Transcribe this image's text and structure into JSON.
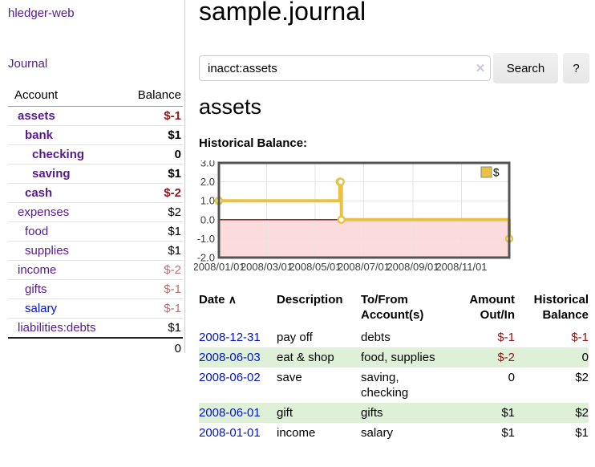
{
  "sidebar": {
    "app_title": "hledger-web",
    "journal_link": "Journal",
    "accounts": {
      "col_account": "Account",
      "col_balance": "Balance",
      "rows": [
        {
          "name": "assets",
          "depth": 0,
          "bold": true,
          "balance": "$-1",
          "neg": true,
          "soft": false,
          "blue": false
        },
        {
          "name": "bank",
          "depth": 1,
          "bold": true,
          "balance": "$1",
          "neg": false,
          "soft": false,
          "blue": false
        },
        {
          "name": "checking",
          "depth": 2,
          "bold": true,
          "balance": "0",
          "neg": false,
          "soft": false,
          "blue": false
        },
        {
          "name": "saving",
          "depth": 2,
          "bold": true,
          "balance": "$1",
          "neg": false,
          "soft": false,
          "blue": false
        },
        {
          "name": "cash",
          "depth": 1,
          "bold": true,
          "balance": "$-2",
          "neg": true,
          "soft": false,
          "blue": false
        },
        {
          "name": "expenses",
          "depth": 0,
          "bold": false,
          "balance": "$2",
          "neg": false,
          "soft": false,
          "blue": false
        },
        {
          "name": "food",
          "depth": 1,
          "bold": false,
          "balance": "$1",
          "neg": false,
          "soft": false,
          "blue": false
        },
        {
          "name": "supplies",
          "depth": 1,
          "bold": false,
          "balance": "$1",
          "neg": false,
          "soft": false,
          "blue": false
        },
        {
          "name": "income",
          "depth": 0,
          "bold": false,
          "balance": "$-2",
          "neg": false,
          "soft": true,
          "blue": false
        },
        {
          "name": "gifts",
          "depth": 1,
          "bold": false,
          "balance": "$-1",
          "neg": false,
          "soft": true,
          "blue": false
        },
        {
          "name": "salary",
          "depth": 1,
          "bold": false,
          "balance": "$-1",
          "neg": false,
          "soft": true,
          "blue": true
        },
        {
          "name": "liabilities:debts",
          "depth": 0,
          "bold": false,
          "balance": "$1",
          "neg": false,
          "soft": false,
          "blue": false
        }
      ],
      "total": "0"
    }
  },
  "main": {
    "title": "sample.journal",
    "search": {
      "value": "inacct:assets",
      "clear_icon": "✕",
      "button_label": "Search",
      "help_label": "?"
    },
    "account_heading": "assets",
    "chart_label": "Historical Balance:",
    "register": {
      "headers": {
        "date": "Date",
        "sort_icon": "∧",
        "description": "Description",
        "tofrom_line1": "To/From",
        "tofrom_line2": "Account(s)",
        "amount_line1": "Amount",
        "amount_line2": "Out/In",
        "hist_line1": "Historical",
        "hist_line2": "Balance"
      },
      "rows": [
        {
          "date": "2008-12-31",
          "description": "pay off",
          "accounts": "debts",
          "amount": "$-1",
          "amount_neg": true,
          "balance": "$-1",
          "balance_neg": true
        },
        {
          "date": "2008-06-03",
          "description": "eat & shop",
          "accounts": "food, supplies",
          "amount": "$-2",
          "amount_neg": true,
          "balance": "0",
          "balance_neg": false
        },
        {
          "date": "2008-06-02",
          "description": "save",
          "accounts": "saving, checking",
          "amount": "0",
          "amount_neg": false,
          "balance": "$2",
          "balance_neg": false
        },
        {
          "date": "2008-06-01",
          "description": "gift",
          "accounts": "gifts",
          "amount": "$1",
          "amount_neg": false,
          "balance": "$2",
          "balance_neg": false
        },
        {
          "date": "2008-01-01",
          "description": "income",
          "accounts": "salary",
          "amount": "$1",
          "amount_neg": false,
          "balance": "$1",
          "balance_neg": false
        }
      ]
    }
  },
  "chart_data": {
    "type": "line",
    "title": "Historical Balance:",
    "step": true,
    "series": [
      {
        "name": "$",
        "points": [
          [
            "2008-01-01",
            1
          ],
          [
            "2008-06-01",
            2
          ],
          [
            "2008-06-02",
            2
          ],
          [
            "2008-06-03",
            0
          ],
          [
            "2008-12-31",
            -1
          ]
        ]
      }
    ],
    "x_range": [
      "2008-01-01",
      "2008-12-31"
    ],
    "x_ticks": [
      "2008/01/01",
      "2008/03/01",
      "2008/05/01",
      "2008/07/01",
      "2008/09/01",
      "2008/11/01"
    ],
    "y_ticks": [
      3,
      2,
      1,
      0,
      -1,
      -2
    ],
    "y_tick_labels": [
      "3.0",
      "2.0",
      "1.0",
      "0.0",
      "-1.0",
      "-2.0"
    ],
    "ylim": [
      -2,
      3
    ],
    "grid": true,
    "legend": "$",
    "legend_position": "top-right",
    "line_color": "#e8c240",
    "marker_fill": "#ffffff",
    "negative_region_color": "#fbdbdb",
    "zero_line_color": "#7f1010",
    "grid_color": "#e3e3e3",
    "border_color": "#545454"
  },
  "colors": {
    "link_purple": "#551a8b",
    "link_blue": "#0013cc",
    "negative_red": "#8e1616",
    "negative_soft_red": "#b37171",
    "row_stripe_green": "#dff0d8"
  }
}
